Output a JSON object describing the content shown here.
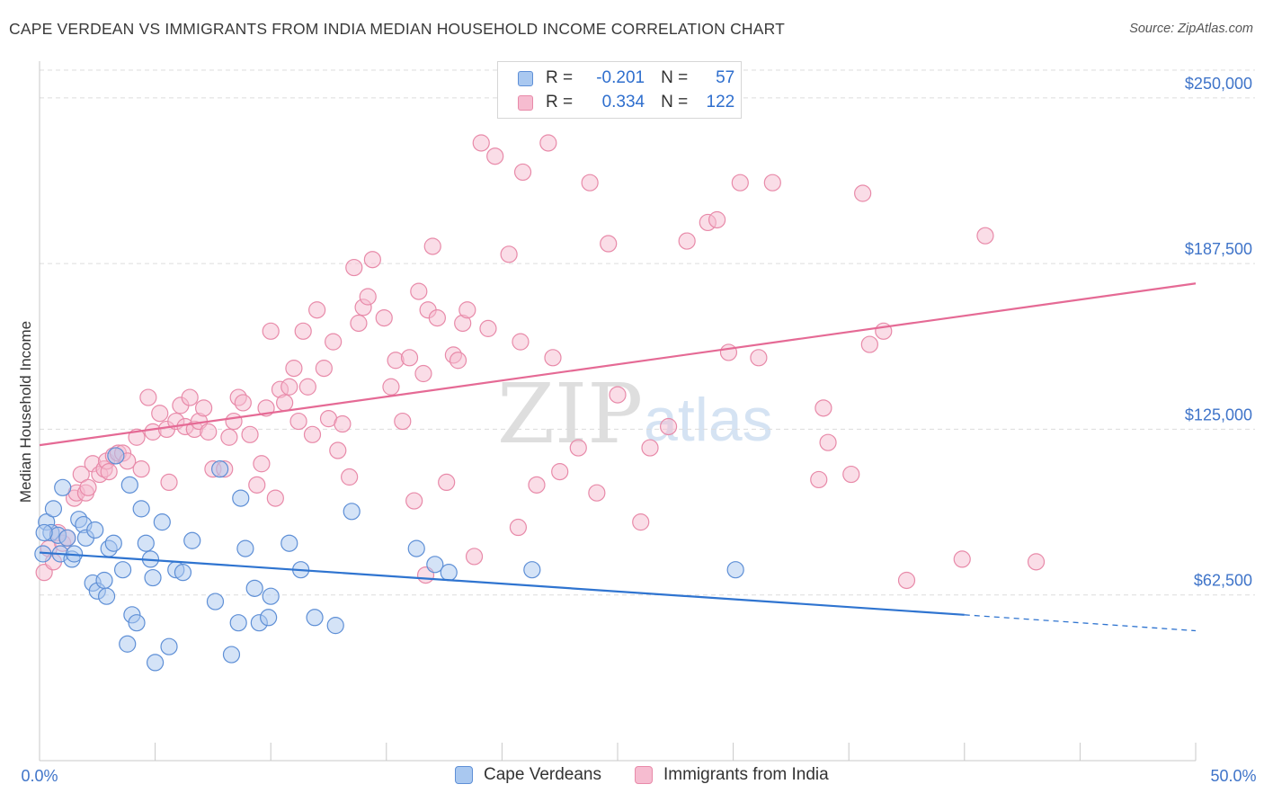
{
  "title": "CAPE VERDEAN VS IMMIGRANTS FROM INDIA MEDIAN HOUSEHOLD INCOME CORRELATION CHART",
  "source": "Source: ZipAtlas.com",
  "watermark": {
    "zip": "ZIP",
    "atlas": "atlas"
  },
  "legend": {
    "rows": [
      {
        "r_label": "R =",
        "r_value": "-0.201",
        "n_label": "N =",
        "n_value": "57",
        "color": "#a9c8f0",
        "stroke": "#5e8fd6"
      },
      {
        "r_label": "R =",
        "r_value": "0.334",
        "n_label": "N =",
        "n_value": "122",
        "color": "#f6bcd0",
        "stroke": "#e88aa9"
      }
    ]
  },
  "bottom_legend": [
    {
      "label": "Cape Verdeans",
      "color": "#a9c8f0",
      "stroke": "#5e8fd6"
    },
    {
      "label": "Immigrants from India",
      "color": "#f6bcd0",
      "stroke": "#e88aa9"
    }
  ],
  "chart_data": {
    "type": "scatter",
    "title": "CAPE VERDEAN VS IMMIGRANTS FROM INDIA MEDIAN HOUSEHOLD INCOME CORRELATION CHART",
    "xlabel": "",
    "ylabel": "Median Household Income",
    "xlim": [
      0,
      50
    ],
    "ylim": [
      0,
      262500
    ],
    "x_tick_labels": [
      "0.0%",
      "50.0%"
    ],
    "y_ticks": [
      62500,
      125000,
      187500,
      250000
    ],
    "y_tick_labels": [
      "$62,500",
      "$125,000",
      "$187,500",
      "$250,000"
    ],
    "grid": "horizontal dashed",
    "legend_position": "top-center",
    "series": [
      {
        "name": "Cape Verdeans",
        "color": "#a9c8f0",
        "stroke": "#5e8fd6",
        "line_color": "#2f74d0",
        "trend": {
          "x0": 0,
          "y0": 78500,
          "x1": 40,
          "y1": 55000,
          "dash_to_x": 50,
          "dash_to_y": 49000
        },
        "points": [
          [
            0.3,
            90000
          ],
          [
            0.6,
            95000
          ],
          [
            0.5,
            86000
          ],
          [
            0.8,
            85000
          ],
          [
            0.9,
            78000
          ],
          [
            1.0,
            103000
          ],
          [
            1.2,
            84000
          ],
          [
            1.4,
            76000
          ],
          [
            1.5,
            78000
          ],
          [
            1.7,
            91000
          ],
          [
            1.9,
            89000
          ],
          [
            2.0,
            84000
          ],
          [
            2.4,
            87000
          ],
          [
            2.3,
            67000
          ],
          [
            2.5,
            64000
          ],
          [
            2.8,
            68000
          ],
          [
            2.9,
            62000
          ],
          [
            3.0,
            80000
          ],
          [
            3.2,
            82000
          ],
          [
            3.3,
            115000
          ],
          [
            3.6,
            72000
          ],
          [
            3.8,
            44000
          ],
          [
            3.9,
            104000
          ],
          [
            4.0,
            55000
          ],
          [
            4.2,
            52000
          ],
          [
            4.4,
            95000
          ],
          [
            4.6,
            82000
          ],
          [
            4.8,
            76000
          ],
          [
            4.9,
            69000
          ],
          [
            5.0,
            37000
          ],
          [
            5.3,
            90000
          ],
          [
            5.6,
            43000
          ],
          [
            5.9,
            72000
          ],
          [
            6.2,
            71000
          ],
          [
            6.6,
            83000
          ],
          [
            7.6,
            60000
          ],
          [
            7.8,
            110000
          ],
          [
            8.3,
            40000
          ],
          [
            8.6,
            52000
          ],
          [
            8.7,
            99000
          ],
          [
            8.9,
            80000
          ],
          [
            9.3,
            65000
          ],
          [
            9.5,
            52000
          ],
          [
            9.9,
            54000
          ],
          [
            10.0,
            62000
          ],
          [
            10.8,
            82000
          ],
          [
            11.3,
            72000
          ],
          [
            11.9,
            54000
          ],
          [
            12.8,
            51000
          ],
          [
            13.5,
            94000
          ],
          [
            16.3,
            80000
          ],
          [
            17.1,
            74000
          ],
          [
            17.7,
            71000
          ],
          [
            21.3,
            72000
          ],
          [
            30.1,
            72000
          ],
          [
            0.15,
            78000
          ],
          [
            0.2,
            86000
          ]
        ]
      },
      {
        "name": "Immigrants from India",
        "color": "#f6bcd0",
        "stroke": "#e88aa9",
        "line_color": "#e56a95",
        "trend": {
          "x0": 0,
          "y0": 119000,
          "x1": 50,
          "y1": 180000
        },
        "points": [
          [
            0.2,
            71000
          ],
          [
            0.4,
            80000
          ],
          [
            0.6,
            75000
          ],
          [
            0.8,
            86000
          ],
          [
            1.0,
            82000
          ],
          [
            1.2,
            84000
          ],
          [
            1.5,
            99000
          ],
          [
            1.6,
            101000
          ],
          [
            1.8,
            108000
          ],
          [
            2.0,
            101000
          ],
          [
            2.1,
            103000
          ],
          [
            2.3,
            112000
          ],
          [
            2.6,
            108000
          ],
          [
            2.8,
            110000
          ],
          [
            2.9,
            113000
          ],
          [
            3.0,
            109000
          ],
          [
            3.2,
            115000
          ],
          [
            3.4,
            116000
          ],
          [
            3.6,
            116000
          ],
          [
            3.8,
            113000
          ],
          [
            4.2,
            122000
          ],
          [
            4.4,
            110000
          ],
          [
            4.7,
            137000
          ],
          [
            4.9,
            124000
          ],
          [
            5.2,
            131000
          ],
          [
            5.5,
            125000
          ],
          [
            5.6,
            105000
          ],
          [
            5.9,
            128000
          ],
          [
            6.1,
            134000
          ],
          [
            6.3,
            126000
          ],
          [
            6.5,
            137000
          ],
          [
            6.7,
            125000
          ],
          [
            6.9,
            128000
          ],
          [
            7.1,
            133000
          ],
          [
            7.3,
            124000
          ],
          [
            7.5,
            110000
          ],
          [
            8.0,
            110000
          ],
          [
            8.2,
            122000
          ],
          [
            8.4,
            128000
          ],
          [
            8.6,
            137000
          ],
          [
            8.8,
            135000
          ],
          [
            9.1,
            123000
          ],
          [
            9.4,
            104000
          ],
          [
            9.6,
            112000
          ],
          [
            9.8,
            133000
          ],
          [
            10.0,
            162000
          ],
          [
            10.2,
            99000
          ],
          [
            10.4,
            140000
          ],
          [
            10.6,
            135000
          ],
          [
            10.8,
            141000
          ],
          [
            11.0,
            148000
          ],
          [
            11.2,
            128000
          ],
          [
            11.4,
            162000
          ],
          [
            11.6,
            141000
          ],
          [
            11.8,
            123000
          ],
          [
            12.0,
            170000
          ],
          [
            12.3,
            148000
          ],
          [
            12.5,
            129000
          ],
          [
            12.7,
            158000
          ],
          [
            12.9,
            117000
          ],
          [
            13.1,
            127000
          ],
          [
            13.4,
            107000
          ],
          [
            13.6,
            186000
          ],
          [
            13.8,
            165000
          ],
          [
            14.0,
            171000
          ],
          [
            14.2,
            175000
          ],
          [
            14.4,
            189000
          ],
          [
            14.9,
            167000
          ],
          [
            15.2,
            141000
          ],
          [
            15.4,
            151000
          ],
          [
            15.7,
            128000
          ],
          [
            16.0,
            152000
          ],
          [
            16.2,
            98000
          ],
          [
            16.4,
            177000
          ],
          [
            16.6,
            146000
          ],
          [
            16.8,
            170000
          ],
          [
            17.0,
            194000
          ],
          [
            17.2,
            167000
          ],
          [
            17.6,
            105000
          ],
          [
            17.9,
            153000
          ],
          [
            18.1,
            151000
          ],
          [
            18.3,
            165000
          ],
          [
            18.5,
            170000
          ],
          [
            18.8,
            77000
          ],
          [
            19.1,
            233000
          ],
          [
            19.4,
            163000
          ],
          [
            19.7,
            228000
          ],
          [
            20.3,
            191000
          ],
          [
            20.7,
            88000
          ],
          [
            20.8,
            158000
          ],
          [
            20.9,
            222000
          ],
          [
            21.5,
            104000
          ],
          [
            22.0,
            233000
          ],
          [
            22.2,
            152000
          ],
          [
            22.5,
            109000
          ],
          [
            23.3,
            118000
          ],
          [
            23.8,
            218000
          ],
          [
            24.1,
            101000
          ],
          [
            24.6,
            195000
          ],
          [
            25.0,
            138000
          ],
          [
            26.0,
            90000
          ],
          [
            26.4,
            118000
          ],
          [
            27.2,
            126000
          ],
          [
            28.0,
            196000
          ],
          [
            28.9,
            203000
          ],
          [
            29.3,
            204000
          ],
          [
            29.8,
            154000
          ],
          [
            30.3,
            218000
          ],
          [
            31.1,
            152000
          ],
          [
            31.7,
            218000
          ],
          [
            33.7,
            106000
          ],
          [
            33.9,
            133000
          ],
          [
            34.1,
            120000
          ],
          [
            35.1,
            108000
          ],
          [
            35.6,
            214000
          ],
          [
            35.9,
            157000
          ],
          [
            36.5,
            162000
          ],
          [
            37.5,
            68000
          ],
          [
            39.9,
            76000
          ],
          [
            40.9,
            198000
          ],
          [
            43.1,
            75000
          ],
          [
            16.7,
            70000
          ]
        ]
      }
    ]
  }
}
